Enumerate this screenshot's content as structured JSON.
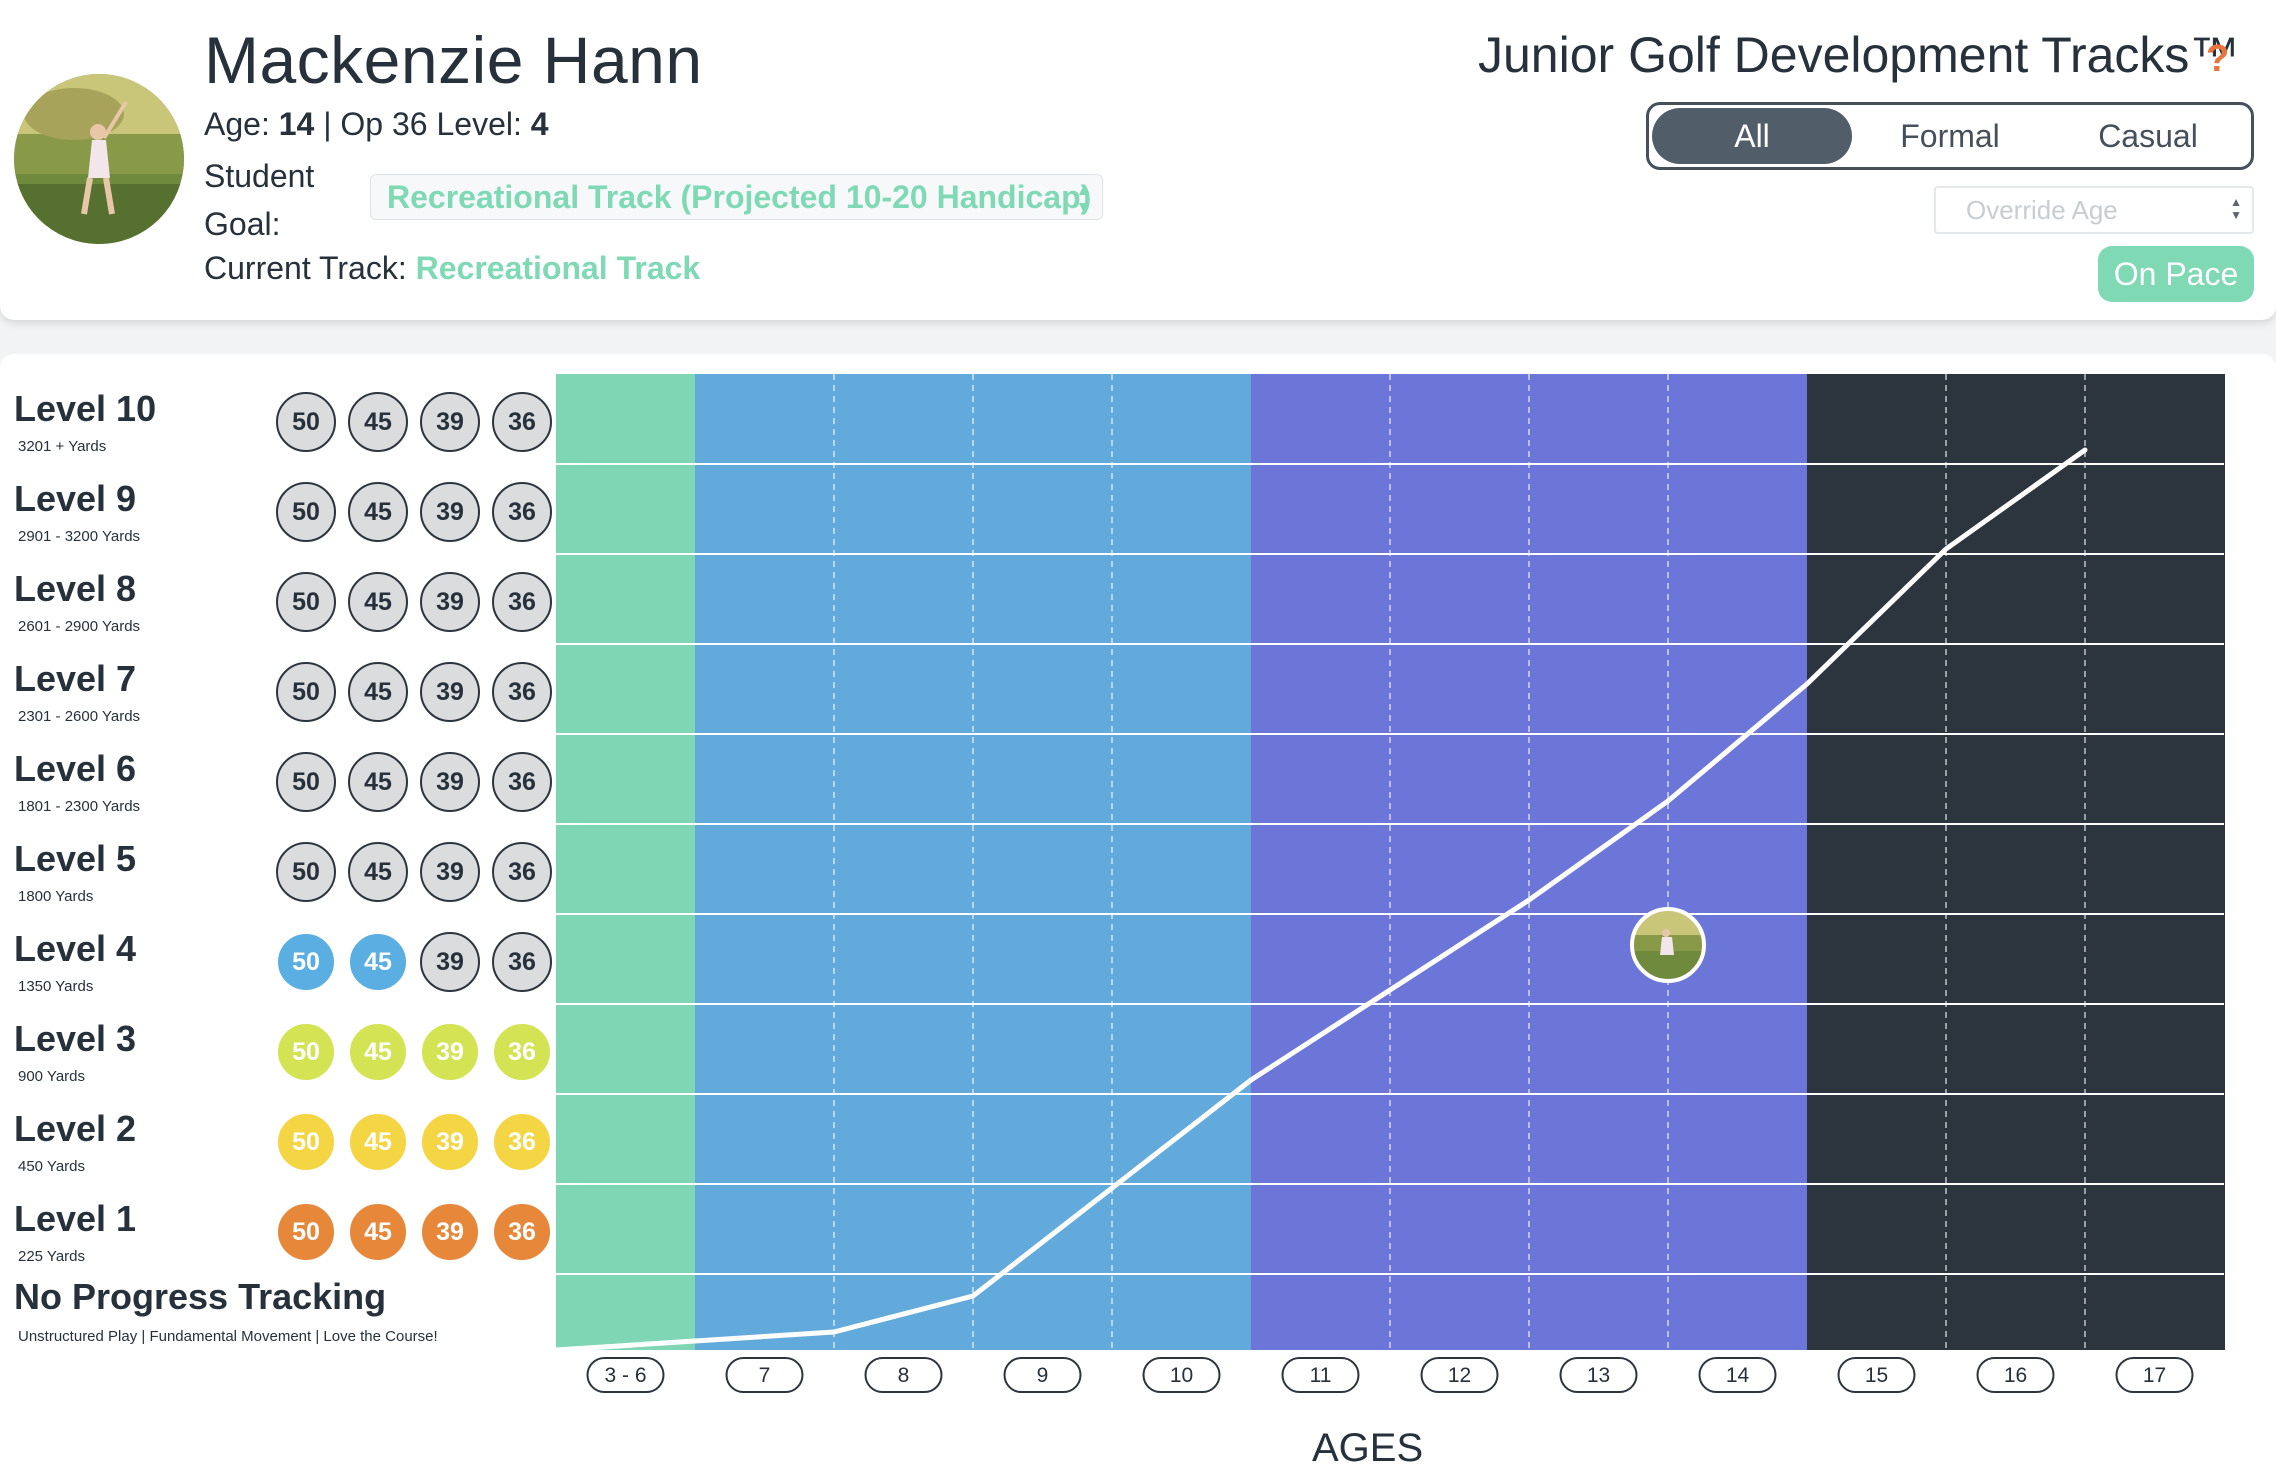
{
  "student": {
    "name": "Mackenzie Hann",
    "age_label": "Age:",
    "age": "14",
    "level_label": "| Op 36 Level:",
    "level": "4",
    "goal_label": "Student Goal:",
    "goal_value": "Recreational Track (Projected 10-20 Handicap)",
    "current_track_label": "Current Track:",
    "current_track": "Recreational Track"
  },
  "header": {
    "title": "Junior Golf Development Tracks™",
    "help": "?",
    "filters": [
      "All",
      "Formal",
      "Casual"
    ],
    "active_filter": "All",
    "override_placeholder": "Override Age",
    "status": "On Pace"
  },
  "levels": [
    {
      "name": "Level 10",
      "yards": "3201 + Yards",
      "scores": [
        "50",
        "45",
        "39",
        "36"
      ],
      "color": "none"
    },
    {
      "name": "Level 9",
      "yards": "2901 - 3200 Yards",
      "scores": [
        "50",
        "45",
        "39",
        "36"
      ],
      "color": "none"
    },
    {
      "name": "Level 8",
      "yards": "2601 - 2900 Yards",
      "scores": [
        "50",
        "45",
        "39",
        "36"
      ],
      "color": "none"
    },
    {
      "name": "Level 7",
      "yards": "2301 - 2600 Yards",
      "scores": [
        "50",
        "45",
        "39",
        "36"
      ],
      "color": "none"
    },
    {
      "name": "Level 6",
      "yards": "1801 - 2300 Yards",
      "scores": [
        "50",
        "45",
        "39",
        "36"
      ],
      "color": "none"
    },
    {
      "name": "Level 5",
      "yards": "1800 Yards",
      "scores": [
        "50",
        "45",
        "39",
        "36"
      ],
      "color": "none"
    },
    {
      "name": "Level 4",
      "yards": "1350 Yards",
      "scores": [
        "50",
        "45",
        "39",
        "36"
      ],
      "color": "blue",
      "completed": 2
    },
    {
      "name": "Level 3",
      "yards": "900 Yards",
      "scores": [
        "50",
        "45",
        "39",
        "36"
      ],
      "color": "lime"
    },
    {
      "name": "Level 2",
      "yards": "450 Yards",
      "scores": [
        "50",
        "45",
        "39",
        "36"
      ],
      "color": "yellow"
    },
    {
      "name": "Level 1",
      "yards": "225 Yards",
      "scores": [
        "50",
        "45",
        "39",
        "36"
      ],
      "color": "orange"
    }
  ],
  "no_progress": {
    "name": "No Progress Tracking",
    "sub": "Unstructured Play | Fundamental Movement | Love the Course!"
  },
  "chart_data": {
    "type": "line",
    "x_title": "AGES",
    "age_labels": [
      "3 - 6",
      "7",
      "8",
      "9",
      "10",
      "11",
      "12",
      "13",
      "14",
      "15",
      "16",
      "17"
    ],
    "age_band_colors": [
      "#7fd6b5",
      "#62a9dc",
      "#62a9dc",
      "#62a9dc",
      "#62a9dc",
      "#6b76d8",
      "#6b76d8",
      "#6b76d8",
      "#6b76d8",
      "#2c343d",
      "#2c343d",
      "#2c343d"
    ],
    "series": [
      {
        "values": [
          0,
          0.1,
          0.2,
          0.6,
          1.8,
          3.0,
          4.0,
          5.0,
          6.1,
          7.4,
          8.9,
          10.0
        ],
        "x": [
          3,
          7,
          8,
          9,
          10,
          11,
          12,
          13,
          14,
          15,
          16,
          17
        ]
      }
    ],
    "current_point": {
      "age": 14,
      "level": 4.5
    },
    "y_levels": 11
  }
}
